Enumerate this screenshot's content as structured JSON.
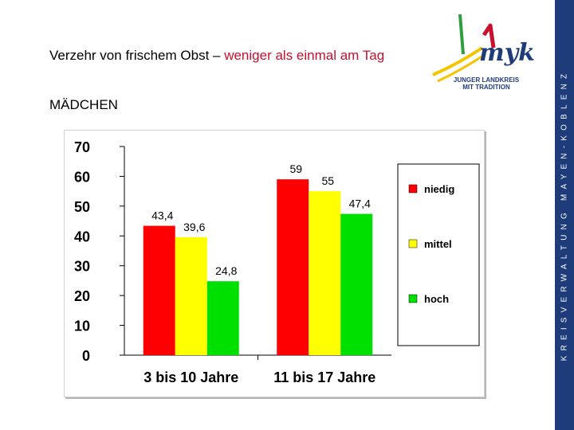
{
  "header": {
    "title_prefix": "Verzehr von frischem Obst – ",
    "title_accent": "weniger als einmal am Tag",
    "subtitle": "MÄDCHEN"
  },
  "logo": {
    "mark": "myk",
    "line1": "JUNGER LANDKREIS",
    "line2": "MIT TRADITION"
  },
  "sideband": {
    "text": "KREISVERWALTUNG MAYEN-KOBLENZ"
  },
  "colors": {
    "accent": "#c8102e",
    "band": "#1f3c7a",
    "niedig": "#ff0000",
    "mittel": "#ffff00",
    "hoch": "#00e000"
  },
  "chart_data": {
    "type": "bar",
    "categories": [
      "3 bis 10 Jahre",
      "11 bis 17 Jahre"
    ],
    "series": [
      {
        "name": "niedig",
        "values": [
          43.4,
          59
        ],
        "labels": [
          "43,4",
          "59"
        ]
      },
      {
        "name": "mittel",
        "values": [
          39.6,
          55
        ],
        "labels": [
          "39,6",
          "55"
        ]
      },
      {
        "name": "hoch",
        "values": [
          24.8,
          47.4
        ],
        "labels": [
          "24,8",
          "47,4"
        ]
      }
    ],
    "ylim": [
      0,
      70
    ],
    "yticks": [
      "0",
      "10",
      "20",
      "30",
      "40",
      "50",
      "60",
      "70"
    ],
    "grid": false,
    "legend": "right"
  }
}
